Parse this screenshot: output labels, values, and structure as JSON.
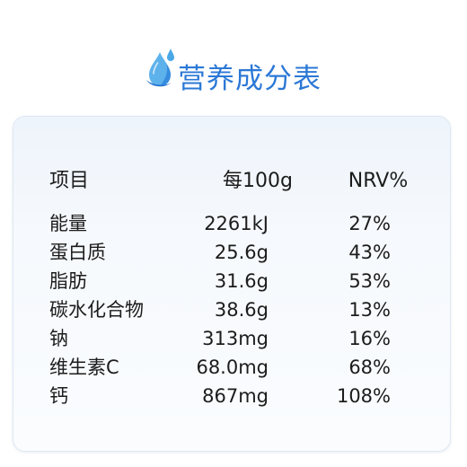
{
  "title": "营养成分表",
  "colors": {
    "accent": "#2b78d6",
    "drop_light": "#62b7ee",
    "drop_dark": "#1f6fd0"
  },
  "icon": "water-drop-icon",
  "table": {
    "headers": {
      "item": "项目",
      "per100g": "每100g",
      "nrv": "NRV%"
    },
    "rows": [
      {
        "item": "能量",
        "amount": "2261kJ",
        "nrv": "27%"
      },
      {
        "item": "蛋白质",
        "amount": "25.6g",
        "nrv": "43%"
      },
      {
        "item": "脂肪",
        "amount": "31.6g",
        "nrv": "53%"
      },
      {
        "item": "碳水化合物",
        "amount": "38.6g",
        "nrv": "13%"
      },
      {
        "item": "钠",
        "amount": "313mg",
        "nrv": "16%"
      },
      {
        "item": "维生素C",
        "amount": "68.0mg",
        "nrv": "68%"
      },
      {
        "item": "钙",
        "amount": "867mg",
        "nrv": "108%"
      }
    ]
  }
}
